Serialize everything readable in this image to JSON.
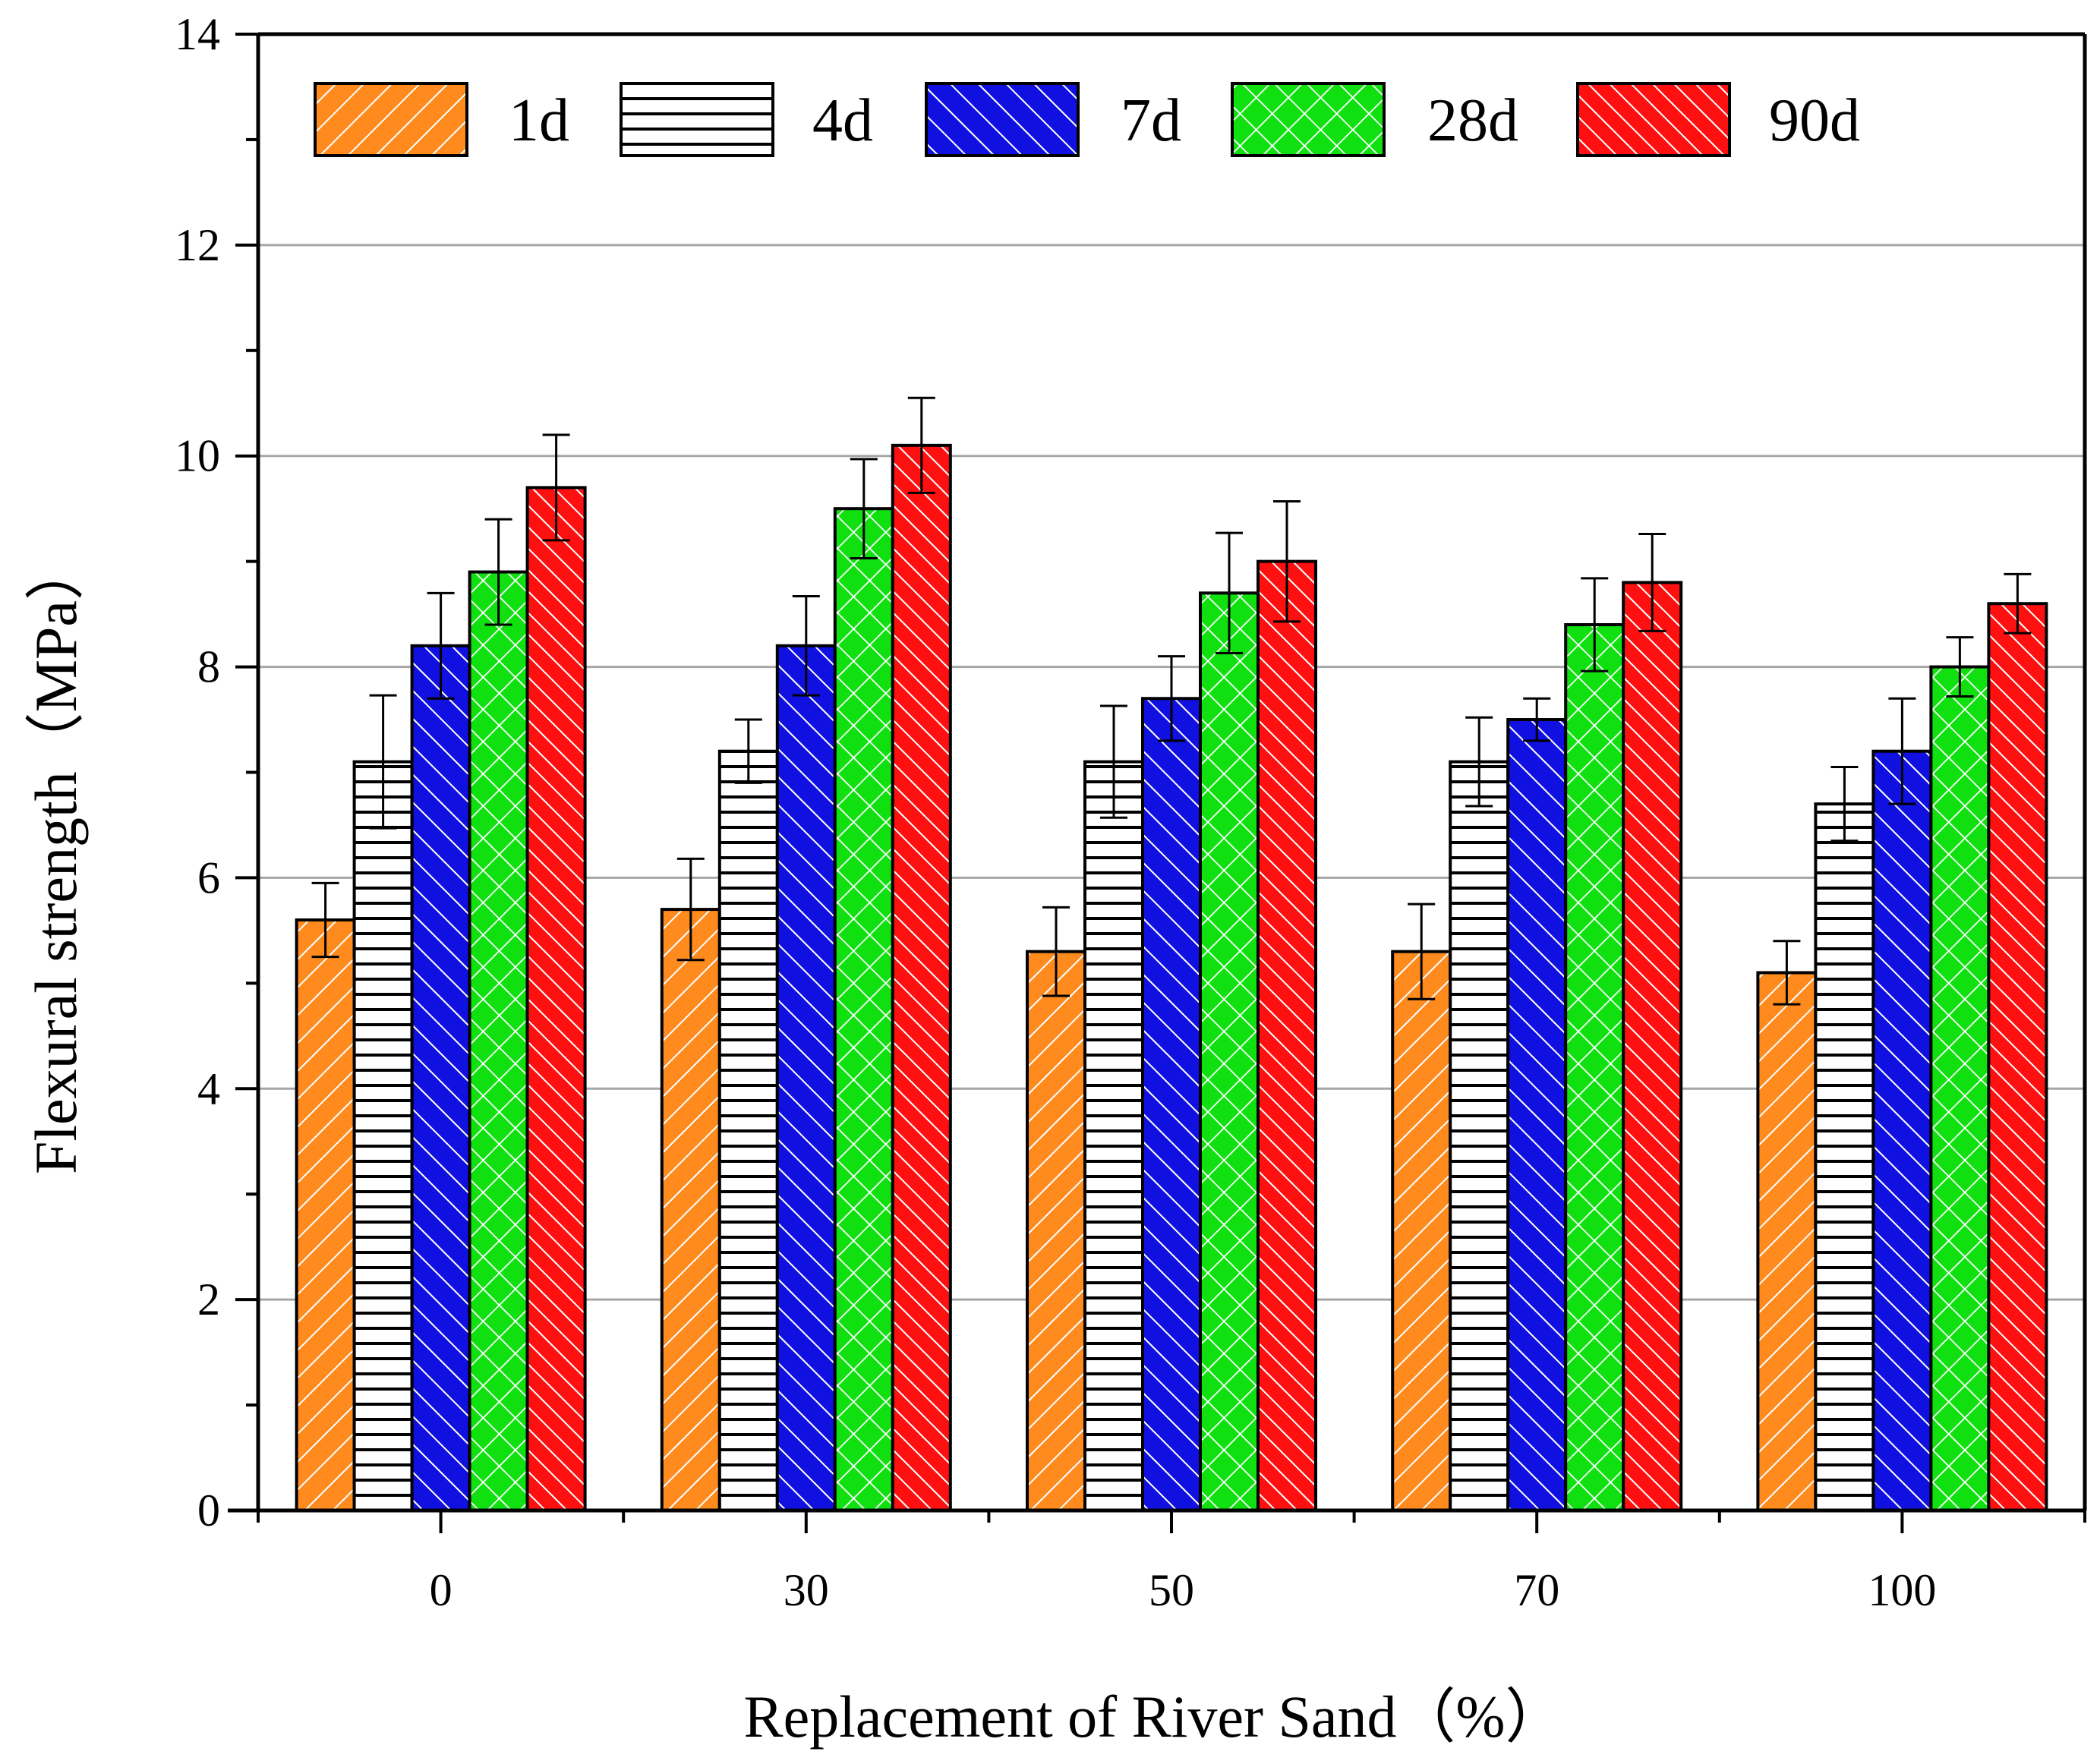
{
  "chart_data": {
    "type": "bar",
    "title": "",
    "xlabel": "Replacement of River Sand（%）",
    "ylabel": "Flexural strength（MPa）",
    "ylim": [
      0,
      14
    ],
    "yticks": [
      "0",
      "2",
      "4",
      "6",
      "8",
      "10",
      "12",
      "14"
    ],
    "grid": true,
    "legend_position": "top",
    "categories": [
      "0",
      "30",
      "50",
      "70",
      "100"
    ],
    "series": [
      {
        "name": "1d",
        "color": "#ff8a1e",
        "pattern": "diag-right",
        "values": [
          5.6,
          5.7,
          5.3,
          5.3,
          5.1
        ],
        "errors": [
          0.35,
          0.48,
          0.42,
          0.45,
          0.3
        ]
      },
      {
        "name": "4d",
        "color": "#ffffff",
        "pattern": "horizontal",
        "values": [
          7.1,
          7.2,
          7.1,
          7.1,
          6.7
        ],
        "errors": [
          0.63,
          0.3,
          0.53,
          0.42,
          0.35
        ]
      },
      {
        "name": "7d",
        "color": "#1010e0",
        "pattern": "diag-left",
        "values": [
          8.2,
          8.2,
          7.7,
          7.5,
          7.2
        ],
        "errors": [
          0.5,
          0.47,
          0.4,
          0.2,
          0.5
        ]
      },
      {
        "name": "28d",
        "color": "#10e010",
        "pattern": "cross",
        "values": [
          8.9,
          9.5,
          8.7,
          8.4,
          8.0
        ],
        "errors": [
          0.5,
          0.47,
          0.57,
          0.44,
          0.28
        ]
      },
      {
        "name": "90d",
        "color": "#ff1010",
        "pattern": "diag-left",
        "values": [
          9.7,
          10.1,
          9.0,
          8.8,
          8.6
        ],
        "errors": [
          0.5,
          0.45,
          0.57,
          0.46,
          0.28
        ]
      }
    ]
  }
}
